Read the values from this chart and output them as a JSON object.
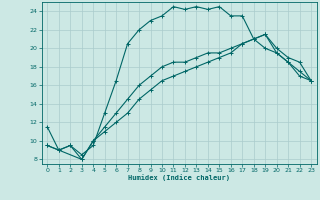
{
  "title": "",
  "xlabel": "Humidex (Indice chaleur)",
  "xlim": [
    -0.5,
    23.5
  ],
  "ylim": [
    7.5,
    25.0
  ],
  "yticks": [
    8,
    10,
    12,
    14,
    16,
    18,
    20,
    22,
    24
  ],
  "xticks": [
    0,
    1,
    2,
    3,
    4,
    5,
    6,
    7,
    8,
    9,
    10,
    11,
    12,
    13,
    14,
    15,
    16,
    17,
    18,
    19,
    20,
    21,
    22,
    23
  ],
  "bg_color": "#cce8e4",
  "grid_color": "#aacccc",
  "line_color": "#006666",
  "curve1_x": [
    0,
    1,
    2,
    3,
    4,
    5,
    6,
    7,
    8,
    9,
    10,
    11,
    12,
    13,
    14,
    15,
    16,
    17,
    18,
    19,
    20,
    21,
    22,
    23
  ],
  "curve1_y": [
    11.5,
    9.0,
    9.5,
    8.5,
    9.5,
    13.0,
    16.5,
    20.5,
    22.0,
    23.0,
    23.5,
    24.5,
    24.2,
    24.5,
    24.2,
    24.5,
    23.5,
    23.5,
    21.0,
    20.0,
    19.5,
    18.5,
    17.0,
    16.5
  ],
  "curve2_x": [
    0,
    3,
    23
  ],
  "curve2_y": [
    9.5,
    8.0,
    16.5
  ],
  "curve3_x": [
    0,
    3,
    23
  ],
  "curve3_y": [
    9.5,
    8.0,
    16.5
  ],
  "line2_x": [
    0,
    1,
    2,
    3,
    4,
    5,
    6,
    7,
    8,
    9,
    10,
    11,
    12,
    13,
    14,
    15,
    16,
    17,
    18,
    19,
    20,
    21,
    22,
    23
  ],
  "line2_y": [
    9.5,
    9.0,
    9.5,
    8.0,
    10.0,
    11.0,
    12.0,
    13.0,
    14.5,
    15.5,
    16.5,
    17.0,
    17.5,
    18.0,
    18.5,
    19.0,
    19.5,
    20.5,
    21.0,
    21.5,
    20.0,
    19.0,
    18.5,
    16.5
  ],
  "line3_x": [
    0,
    3,
    4,
    5,
    6,
    7,
    8,
    9,
    10,
    11,
    12,
    13,
    14,
    15,
    16,
    17,
    18,
    19,
    20,
    21,
    22,
    23
  ],
  "line3_y": [
    9.5,
    8.0,
    10.0,
    11.5,
    13.0,
    14.5,
    16.0,
    17.0,
    18.0,
    18.5,
    18.5,
    19.0,
    19.5,
    19.5,
    20.0,
    20.5,
    21.0,
    21.5,
    19.5,
    18.5,
    17.5,
    16.5
  ]
}
